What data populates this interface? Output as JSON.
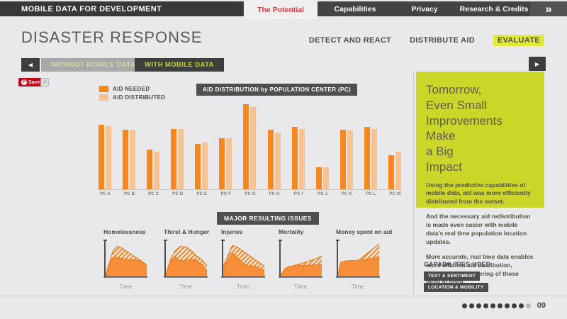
{
  "nav": {
    "brand": "MOBILE DATA FOR DEVELOPMENT",
    "tabs": [
      {
        "label": "The Potential",
        "active": true
      },
      {
        "label": "Capabilities",
        "active": false
      },
      {
        "label": "Privacy",
        "active": false
      },
      {
        "label": "Research & Credits",
        "active": false
      }
    ],
    "forward_chevron": "»"
  },
  "share": {
    "pinterest_label": "Save",
    "pinterest_initial": "P",
    "share_glyph": "↗"
  },
  "page": {
    "title": "DISASTER RESPONSE",
    "steps": [
      {
        "label": "DETECT AND REACT",
        "active": false
      },
      {
        "label": "DISTRIBUTE AID",
        "active": false
      },
      {
        "label": "EVALUATE",
        "active": true
      }
    ]
  },
  "toggle": {
    "back_arrow": "◀",
    "without_label": "WITHOUT MOBILE DATA",
    "with_label": "WITH MOBILE DATA",
    "forward_arrow": "▶"
  },
  "chart_data": [
    {
      "type": "bar",
      "title": "AID DISTRIBUTION by POPULATION CENTER (PC)",
      "categories": [
        "PC A",
        "PC B",
        "PC C",
        "PC D",
        "PC E",
        "PC F",
        "PC G",
        "PC H",
        "PC I",
        "PC J",
        "PC K",
        "PC L",
        "PC M"
      ],
      "series": [
        {
          "name": "AID NEEDED",
          "color": "#f6881f",
          "values": [
            76,
            70,
            47,
            71,
            53,
            60,
            100,
            70,
            73,
            26,
            70,
            73,
            40
          ]
        },
        {
          "name": "AID DISTRIBUTED",
          "color": "#f9c391",
          "values": [
            74,
            70,
            44,
            71,
            55,
            60,
            97,
            67,
            71,
            26,
            69,
            71,
            44
          ]
        }
      ],
      "ylim": [
        0,
        100
      ],
      "grid": false,
      "legend_position": "top-left"
    },
    {
      "type": "area",
      "title": "MAJOR RESULTING ISSUES",
      "xlabel": "Time",
      "charts": [
        {
          "label": "Homelessness",
          "series": [
            {
              "name": "hatched-area",
              "style": "hatched",
              "points": [
                [
                  0,
                  2
                ],
                [
                  8,
                  35
                ],
                [
                  18,
                  72
                ],
                [
                  28,
                  85
                ],
                [
                  40,
                  80
                ],
                [
                  55,
                  68
                ],
                [
                  70,
                  57
                ],
                [
                  85,
                  45
                ],
                [
                  100,
                  33
                ]
              ]
            },
            {
              "name": "solid-area",
              "style": "solid",
              "points": [
                [
                  0,
                  2
                ],
                [
                  10,
                  35
                ],
                [
                  20,
                  55
                ],
                [
                  32,
                  52
                ],
                [
                  50,
                  48
                ],
                [
                  70,
                  46
                ],
                [
                  85,
                  45
                ],
                [
                  100,
                  26
                ]
              ]
            }
          ]
        },
        {
          "label": "Thirst & Hunger",
          "series": [
            {
              "name": "hatched-area",
              "style": "hatched",
              "points": [
                [
                  0,
                  4
                ],
                [
                  10,
                  45
                ],
                [
                  22,
                  72
                ],
                [
                  35,
                  85
                ],
                [
                  50,
                  83
                ],
                [
                  62,
                  72
                ],
                [
                  75,
                  58
                ],
                [
                  88,
                  47
                ],
                [
                  100,
                  30
                ]
              ]
            },
            {
              "name": "solid-area",
              "style": "solid",
              "points": [
                [
                  0,
                  3
                ],
                [
                  12,
                  40
                ],
                [
                  22,
                  57
                ],
                [
                  32,
                  45
                ],
                [
                  45,
                  44
                ],
                [
                  58,
                  49
                ],
                [
                  72,
                  46
                ],
                [
                  86,
                  35
                ],
                [
                  100,
                  14
                ]
              ]
            }
          ]
        },
        {
          "label": "Injuries",
          "series": [
            {
              "name": "hatched-area",
              "style": "hatched",
              "points": [
                [
                  0,
                  28
                ],
                [
                  10,
                  55
                ],
                [
                  22,
                  88
                ],
                [
                  35,
                  82
                ],
                [
                  50,
                  70
                ],
                [
                  65,
                  58
                ],
                [
                  80,
                  45
                ],
                [
                  100,
                  30
                ]
              ]
            },
            {
              "name": "solid-area",
              "style": "solid",
              "points": [
                [
                  0,
                  22
                ],
                [
                  12,
                  50
                ],
                [
                  24,
                  65
                ],
                [
                  35,
                  52
                ],
                [
                  48,
                  38
                ],
                [
                  62,
                  30
                ],
                [
                  78,
                  28
                ],
                [
                  100,
                  17
                ]
              ]
            }
          ]
        },
        {
          "label": "Mortality",
          "series": [
            {
              "name": "hatched-area",
              "style": "hatched",
              "points": [
                [
                  0,
                  3
                ],
                [
                  12,
                  22
                ],
                [
                  25,
                  28
                ],
                [
                  40,
                  33
                ],
                [
                  55,
                  38
                ],
                [
                  70,
                  44
                ],
                [
                  85,
                  50
                ],
                [
                  100,
                  57
                ]
              ]
            },
            {
              "name": "solid-area",
              "style": "solid",
              "points": [
                [
                  0,
                  3
                ],
                [
                  10,
                  22
                ],
                [
                  20,
                  28
                ],
                [
                  40,
                  30
                ],
                [
                  60,
                  31
                ],
                [
                  80,
                  32
                ],
                [
                  100,
                  34
                ]
              ]
            }
          ]
        },
        {
          "label": "Money spent on aid",
          "series": [
            {
              "name": "hatched-area",
              "style": "hatched",
              "points": [
                [
                  0,
                  0
                ],
                [
                  100,
                  92
                ]
              ]
            },
            {
              "name": "solid-area",
              "style": "solid",
              "points": [
                [
                  0,
                  6
                ],
                [
                  6,
                  40
                ],
                [
                  20,
                  44
                ],
                [
                  40,
                  45
                ],
                [
                  60,
                  47
                ],
                [
                  80,
                  50
                ],
                [
                  100,
                  56
                ]
              ]
            }
          ]
        }
      ]
    }
  ],
  "panel": {
    "heading_lines": [
      "Tomorrow,",
      "Even Small",
      "Improvements Make",
      "a Big",
      "Impact"
    ],
    "paragraphs": [
      "Using the predictive capabilities of mobile data, aid was more efficiently distributed from the outset.",
      "And the necessary aid redistribution is made even easier with mobile data's real time population location updates.",
      "More accurate, real time data enables more efficient aid distribution, alleviating the suffering of those most in need."
    ]
  },
  "capabilities": {
    "label": "CAPABILITIES USED",
    "badges": [
      "TEXT & SENTIMENT",
      "LOCATION & MOBILITY"
    ]
  },
  "pager": {
    "dots_total": 10,
    "dots_filled": 9,
    "page_label": "09"
  },
  "colors": {
    "accent_orange": "#f6881f",
    "light_orange": "#f9c391",
    "solid_area": "#f78f3a",
    "area_stroke": "#ef7e1e",
    "yellow_panel": "#ccd629",
    "highlight_yellow": "#e3e93a",
    "nav_dark": "#3e3e3e",
    "active_tab_red": "#e23c40",
    "pinterest_red": "#bd081c",
    "dot_filled": "#3d3d3d",
    "dot_empty": "#b7b7bb"
  }
}
